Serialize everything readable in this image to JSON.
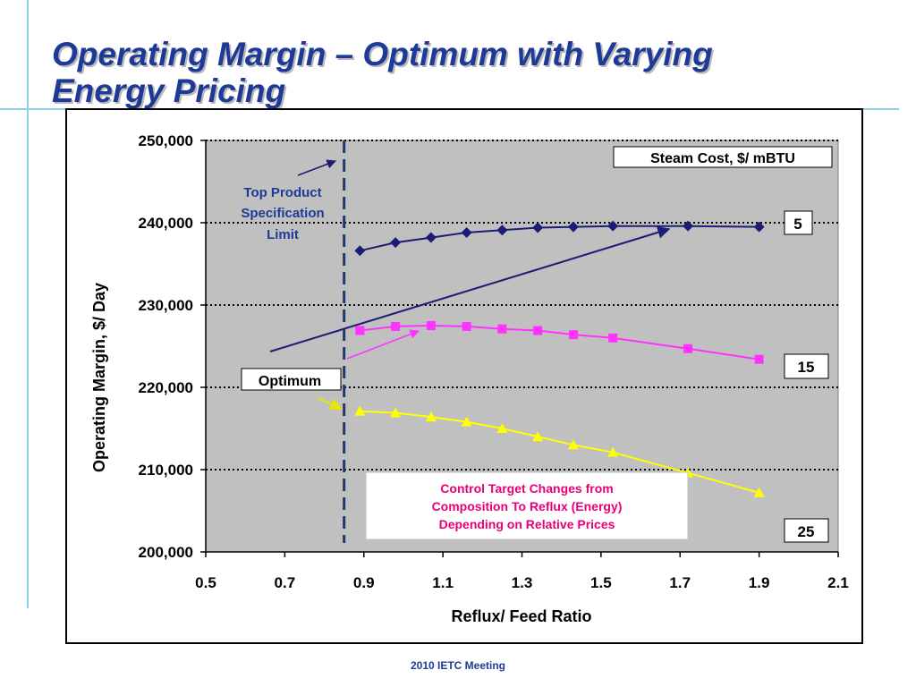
{
  "slide": {
    "title_line1": "Operating Margin – Optimum with Varying",
    "title_line2": "Energy Pricing",
    "footer": "2010 IETC Meeting"
  },
  "chart_data": {
    "type": "line",
    "xlabel": "Reflux/ Feed Ratio",
    "ylabel": "Operating Margin, $/ Day",
    "xlim": [
      0.5,
      2.1
    ],
    "ylim": [
      200000,
      250000
    ],
    "xticks": [
      0.5,
      0.7,
      0.9,
      1.1,
      1.3,
      1.5,
      1.7,
      1.9,
      2.1
    ],
    "xtick_labels": [
      "0.5",
      "0.7",
      "0.9",
      "1.1",
      "1.3",
      "1.5",
      "1.7",
      "1.9",
      "2.1"
    ],
    "yticks": [
      200000,
      210000,
      220000,
      230000,
      240000,
      250000
    ],
    "ytick_labels": [
      "200,000",
      "210,000",
      "220,000",
      "230,000",
      "240,000",
      "250,000"
    ],
    "grid": "horizontal dotted",
    "legend_title": "Steam Cost, $/ mBTU",
    "series": [
      {
        "name": "5",
        "color": "#1c1c78",
        "marker": "diamond",
        "x": [
          0.89,
          0.98,
          1.07,
          1.16,
          1.25,
          1.34,
          1.43,
          1.53,
          1.72,
          1.9
        ],
        "y": [
          236600,
          237600,
          238200,
          238800,
          239100,
          239400,
          239500,
          239600,
          239600,
          239500
        ]
      },
      {
        "name": "15",
        "color": "#ff33ff",
        "marker": "square",
        "x": [
          0.89,
          0.98,
          1.07,
          1.16,
          1.25,
          1.34,
          1.43,
          1.53,
          1.72,
          1.9
        ],
        "y": [
          226900,
          227400,
          227500,
          227400,
          227100,
          226900,
          226400,
          226000,
          224700,
          223400
        ]
      },
      {
        "name": "25",
        "color": "#ffff00",
        "marker": "triangle",
        "x": [
          0.89,
          0.98,
          1.07,
          1.16,
          1.25,
          1.34,
          1.43,
          1.53,
          1.72,
          1.9
        ],
        "y": [
          217100,
          216900,
          216400,
          215800,
          215000,
          214000,
          213000,
          212100,
          209600,
          207200
        ]
      }
    ],
    "spec_limit_x": 0.85,
    "annotations": {
      "spec_limit_line1": "Top Product",
      "spec_limit_line2": "Specification",
      "spec_limit_line3": "Limit",
      "optimum": "Optimum",
      "control_line1": "Control Target Changes from",
      "control_line2": "Composition To Reflux (Energy)",
      "control_line3": "Depending on Relative Prices"
    }
  }
}
